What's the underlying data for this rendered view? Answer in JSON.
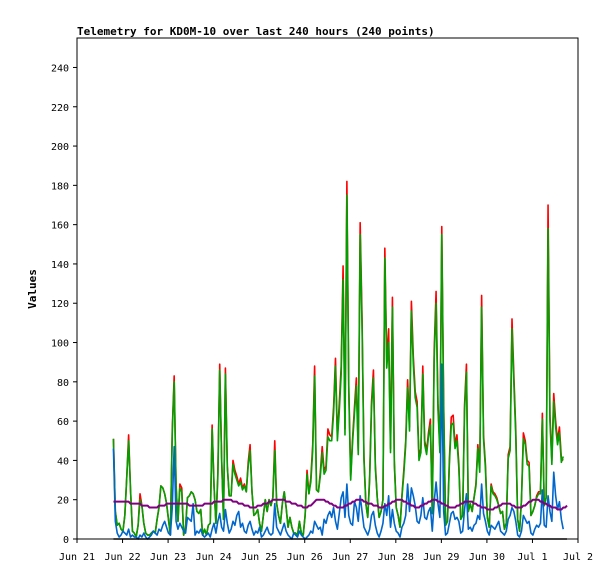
{
  "chart_data": {
    "type": "line",
    "title": "Telemetry for KD0M-10 over last 240 hours (240 points)",
    "xlabel": "",
    "ylabel": "Values",
    "ylim": [
      0,
      255
    ],
    "xlim": [
      0,
      11
    ],
    "y_ticks": [
      0,
      20,
      40,
      60,
      80,
      100,
      120,
      140,
      160,
      180,
      200,
      220,
      240
    ],
    "x_ticks": [
      {
        "pos": 0,
        "label": "Jun 21"
      },
      {
        "pos": 1,
        "label": "Jun 22"
      },
      {
        "pos": 2,
        "label": "Jun 23"
      },
      {
        "pos": 3,
        "label": "Jun 24"
      },
      {
        "pos": 4,
        "label": "Jun 25"
      },
      {
        "pos": 5,
        "label": "Jun 26"
      },
      {
        "pos": 6,
        "label": "Jun 27"
      },
      {
        "pos": 7,
        "label": "Jun 28"
      },
      {
        "pos": 8,
        "label": "Jun 29"
      },
      {
        "pos": 9,
        "label": "Jun 30"
      },
      {
        "pos": 10,
        "label": "Jul 1"
      },
      {
        "pos": 11,
        "label": "Jul 2"
      }
    ],
    "grid": false,
    "legend": "none",
    "x_start": 0.8,
    "x_step": 0.04167,
    "series": [
      {
        "color": "#ff0000",
        "values": [
          51,
          14,
          7,
          8,
          5,
          4,
          12,
          31,
          53,
          25,
          4,
          3,
          1,
          7,
          23,
          17,
          8,
          3,
          2,
          2,
          3,
          4,
          3,
          10,
          16,
          27,
          26,
          23,
          18,
          10,
          2,
          56,
          83,
          27,
          9,
          28,
          26,
          2,
          6,
          21,
          22,
          24,
          23,
          20,
          14,
          13,
          15,
          2,
          5,
          2,
          7,
          8,
          58,
          27,
          8,
          33,
          89,
          41,
          10,
          87,
          37,
          22,
          22,
          40,
          35,
          32,
          28,
          31,
          26,
          28,
          24,
          39,
          48,
          24,
          12,
          13,
          15,
          8,
          4,
          12,
          20,
          14,
          20,
          17,
          21,
          50,
          18,
          12,
          8,
          18,
          24,
          16,
          6,
          11,
          6,
          3,
          3,
          2,
          9,
          3,
          2,
          12,
          35,
          23,
          31,
          48,
          88,
          25,
          24,
          34,
          47,
          35,
          37,
          56,
          53,
          52,
          67,
          92,
          52,
          69,
          88,
          139,
          56,
          182,
          78,
          32,
          51,
          67,
          82,
          45,
          161,
          112,
          42,
          18,
          11,
          32,
          70,
          86,
          38,
          21,
          11,
          14,
          20,
          148,
          91,
          107,
          46,
          123,
          40,
          16,
          12,
          6,
          22,
          35,
          50,
          81,
          57,
          121,
          93,
          75,
          70,
          42,
          46,
          88,
          50,
          45,
          54,
          61,
          13,
          96,
          126,
          69,
          46,
          159,
          69,
          7,
          9,
          40,
          62,
          63,
          48,
          53,
          38,
          10,
          12,
          68,
          89,
          14,
          18,
          14,
          21,
          28,
          48,
          36,
          124,
          53,
          38,
          11,
          6,
          28,
          24,
          23,
          21,
          17,
          13,
          14,
          5,
          8,
          43,
          47,
          112,
          83,
          55,
          10,
          4,
          20,
          54,
          50,
          40,
          39,
          12,
          14,
          17,
          22,
          24,
          24,
          64,
          17,
          21,
          170,
          63,
          40,
          74,
          60,
          50,
          57,
          41,
          40
        ]
      },
      {
        "color": "#00a000",
        "values": [
          51,
          14,
          7,
          8,
          5,
          4,
          12,
          31,
          50,
          25,
          4,
          3,
          1,
          7,
          20,
          17,
          8,
          3,
          2,
          2,
          3,
          4,
          3,
          10,
          16,
          27,
          26,
          23,
          18,
          10,
          2,
          54,
          80,
          27,
          9,
          26,
          24,
          2,
          6,
          21,
          22,
          24,
          23,
          20,
          14,
          13,
          15,
          2,
          5,
          2,
          7,
          8,
          56,
          27,
          8,
          31,
          86,
          41,
          10,
          84,
          37,
          22,
          22,
          38,
          33,
          30,
          27,
          29,
          25,
          27,
          24,
          37,
          45,
          24,
          12,
          13,
          15,
          8,
          4,
          12,
          20,
          14,
          20,
          17,
          21,
          45,
          18,
          12,
          8,
          18,
          24,
          16,
          6,
          11,
          6,
          3,
          3,
          2,
          9,
          3,
          2,
          12,
          33,
          23,
          29,
          45,
          83,
          25,
          24,
          32,
          44,
          33,
          35,
          52,
          50,
          50,
          64,
          88,
          50,
          65,
          84,
          132,
          53,
          175,
          75,
          30,
          49,
          64,
          78,
          43,
          155,
          108,
          40,
          18,
          11,
          30,
          67,
          82,
          36,
          21,
          11,
          14,
          20,
          143,
          87,
          100,
          44,
          118,
          38,
          16,
          12,
          6,
          21,
          33,
          48,
          77,
          55,
          116,
          89,
          72,
          67,
          40,
          44,
          84,
          48,
          43,
          52,
          58,
          13,
          92,
          120,
          66,
          44,
          155,
          66,
          7,
          9,
          38,
          58,
          59,
          46,
          50,
          36,
          10,
          12,
          65,
          85,
          14,
          18,
          14,
          21,
          27,
          46,
          34,
          118,
          51,
          36,
          11,
          6,
          27,
          23,
          22,
          20,
          17,
          13,
          14,
          5,
          8,
          41,
          45,
          107,
          79,
          52,
          10,
          4,
          20,
          51,
          48,
          38,
          37,
          12,
          14,
          17,
          21,
          23,
          23,
          61,
          17,
          21,
          158,
          60,
          38,
          70,
          57,
          48,
          54,
          39,
          42
        ]
      },
      {
        "color": "#0066cc",
        "values": [
          46,
          9,
          3,
          1,
          2,
          4,
          3,
          2,
          5,
          1,
          2,
          1,
          1,
          0,
          2,
          1,
          3,
          1,
          0,
          1,
          2,
          4,
          3,
          2,
          5,
          4,
          7,
          9,
          6,
          3,
          2,
          16,
          47,
          9,
          5,
          8,
          6,
          4,
          3,
          11,
          10,
          9,
          18,
          2,
          4,
          3,
          5,
          2,
          1,
          2,
          3,
          1,
          5,
          8,
          3,
          9,
          13,
          6,
          4,
          15,
          8,
          3,
          5,
          9,
          7,
          12,
          14,
          6,
          8,
          4,
          3,
          7,
          9,
          5,
          2,
          4,
          3,
          6,
          1,
          2,
          4,
          6,
          3,
          2,
          3,
          18,
          6,
          4,
          2,
          5,
          8,
          4,
          2,
          1,
          0,
          3,
          2,
          1,
          4,
          2,
          1,
          0,
          1,
          2,
          4,
          3,
          9,
          7,
          5,
          6,
          2,
          10,
          8,
          12,
          14,
          11,
          16,
          9,
          5,
          13,
          21,
          24,
          11,
          28,
          12,
          8,
          7,
          19,
          16,
          9,
          22,
          14,
          6,
          4,
          2,
          5,
          12,
          14,
          7,
          3,
          1,
          4,
          8,
          18,
          12,
          22,
          6,
          15,
          8,
          4,
          3,
          1,
          6,
          8,
          12,
          28,
          14,
          26,
          22,
          17,
          9,
          8,
          12,
          21,
          11,
          10,
          14,
          16,
          4,
          19,
          29,
          18,
          11,
          89,
          14,
          2,
          3,
          8,
          13,
          14,
          10,
          11,
          9,
          3,
          4,
          15,
          23,
          5,
          6,
          4,
          7,
          8,
          12,
          10,
          28,
          13,
          9,
          4,
          2,
          7,
          6,
          5,
          7,
          9,
          4,
          3,
          2,
          4,
          10,
          12,
          16,
          14,
          9,
          2,
          1,
          4,
          12,
          10,
          8,
          9,
          3,
          2,
          5,
          7,
          6,
          8,
          25,
          7,
          6,
          22,
          14,
          9,
          34,
          22,
          15,
          19,
          10,
          5
        ]
      },
      {
        "color": "#800080",
        "values": [
          19,
          19,
          19,
          19,
          19,
          19,
          19,
          19,
          19,
          18,
          18,
          18,
          18,
          18,
          18,
          17,
          17,
          17,
          17,
          16,
          16,
          16,
          16,
          16,
          17,
          17,
          17,
          17,
          18,
          18,
          18,
          18,
          18,
          18,
          18,
          18,
          18,
          18,
          18,
          18,
          17,
          17,
          17,
          17,
          17,
          17,
          17,
          17,
          18,
          18,
          18,
          18,
          18,
          19,
          19,
          19,
          19,
          19,
          20,
          20,
          20,
          20,
          20,
          19,
          19,
          19,
          18,
          18,
          18,
          17,
          17,
          17,
          16,
          16,
          16,
          16,
          17,
          17,
          17,
          18,
          18,
          18,
          19,
          19,
          20,
          20,
          20,
          20,
          20,
          20,
          20,
          19,
          19,
          19,
          18,
          18,
          18,
          17,
          17,
          17,
          16,
          16,
          16,
          17,
          17,
          18,
          19,
          20,
          20,
          20,
          20,
          20,
          19,
          19,
          18,
          18,
          17,
          17,
          16,
          16,
          16,
          16,
          17,
          17,
          18,
          18,
          19,
          19,
          20,
          20,
          20,
          20,
          19,
          19,
          18,
          18,
          18,
          17,
          17,
          17,
          16,
          16,
          16,
          17,
          17,
          18,
          18,
          19,
          19,
          20,
          20,
          20,
          20,
          19,
          19,
          18,
          18,
          17,
          17,
          16,
          16,
          16,
          17,
          17,
          18,
          18,
          19,
          19,
          20,
          20,
          20,
          19,
          19,
          18,
          18,
          17,
          17,
          16,
          16,
          16,
          16,
          17,
          17,
          18,
          18,
          19,
          19,
          19,
          19,
          19,
          18,
          18,
          17,
          17,
          16,
          16,
          16,
          15,
          15,
          15,
          15,
          16,
          16,
          17,
          17,
          18,
          18,
          18,
          18,
          18,
          17,
          17,
          16,
          16,
          16,
          16,
          17,
          17,
          18,
          19,
          19,
          20,
          20,
          20,
          20,
          19,
          19,
          18,
          18,
          17,
          17,
          16,
          16,
          16,
          15,
          15,
          15,
          16,
          16,
          17
        ]
      },
      {
        "color": "#000000",
        "values": [
          0,
          0,
          0,
          0,
          0,
          0,
          0,
          0,
          0,
          0,
          0,
          0,
          0,
          0,
          0,
          0,
          0,
          0,
          0,
          0,
          0,
          0,
          0,
          0,
          0,
          0,
          0,
          0,
          0,
          0,
          0,
          0,
          0,
          0,
          0,
          0,
          0,
          0,
          0,
          0,
          0,
          0,
          0,
          0,
          0,
          0,
          0,
          0,
          0,
          0,
          0,
          0,
          0,
          0,
          0,
          0,
          0,
          0,
          0,
          0,
          0,
          0,
          0,
          0,
          0,
          0,
          0,
          0,
          0,
          0,
          0,
          0,
          0,
          0,
          0,
          0,
          0,
          0,
          0,
          0,
          0,
          0,
          0,
          0,
          0,
          0,
          0,
          0,
          0,
          0,
          0,
          0,
          0,
          0,
          0,
          0,
          0,
          0,
          0,
          0,
          0,
          0,
          0,
          0,
          0,
          0,
          0,
          0,
          0,
          0,
          0,
          0,
          0,
          0,
          0,
          0,
          0,
          0,
          0,
          0,
          0,
          0,
          0,
          0,
          0,
          0,
          0,
          0,
          0,
          0,
          0,
          0,
          0,
          0,
          0,
          0,
          0,
          0,
          0,
          0,
          0,
          0,
          0,
          0,
          0,
          0,
          0,
          0,
          0,
          0,
          0,
          0,
          0,
          0,
          0,
          0,
          0,
          0,
          0,
          0,
          0,
          0,
          0,
          0,
          0,
          0,
          0,
          0,
          0,
          0,
          0,
          0,
          0,
          0,
          0,
          0,
          0,
          0,
          0,
          0,
          0,
          0,
          0,
          0,
          0,
          0,
          0,
          0,
          0,
          0,
          0,
          0,
          0,
          0,
          0,
          0,
          0,
          0,
          0,
          0,
          0,
          0,
          0,
          0,
          0,
          0,
          0,
          0,
          0,
          0,
          0,
          0,
          0,
          0,
          0,
          0,
          0,
          0,
          0,
          0,
          0,
          0,
          0,
          0,
          0,
          0,
          0,
          0,
          0,
          0,
          0,
          0,
          0,
          0,
          0,
          0,
          0,
          0,
          0,
          0
        ]
      }
    ]
  }
}
